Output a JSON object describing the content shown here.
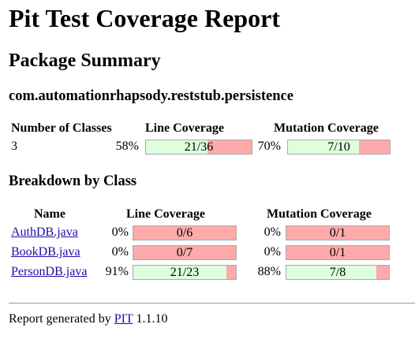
{
  "page": {
    "title": "Pit Test Coverage Report",
    "subtitle": "Package Summary",
    "package_name": "com.automationrhapsody.reststub.persistence"
  },
  "summary": {
    "headers": {
      "classes": "Number of Classes",
      "line": "Line Coverage",
      "mutation": "Mutation Coverage"
    },
    "num_classes": "3",
    "line_pct": "58%",
    "line_ratio": "21/36",
    "line_fraction": 0.58,
    "mutation_pct": "70%",
    "mutation_ratio": "7/10",
    "mutation_fraction": 0.7
  },
  "breakdown": {
    "title": "Breakdown by Class",
    "headers": {
      "name": "Name",
      "line": "Line Coverage",
      "mutation": "Mutation Coverage"
    },
    "rows": [
      {
        "name": "AuthDB.java",
        "line_pct": "0%",
        "line_ratio": "0/6",
        "line_fraction": 0,
        "mutation_pct": "0%",
        "mutation_ratio": "0/1",
        "mutation_fraction": 0
      },
      {
        "name": "BookDB.java",
        "line_pct": "0%",
        "line_ratio": "0/7",
        "line_fraction": 0,
        "mutation_pct": "0%",
        "mutation_ratio": "0/1",
        "mutation_fraction": 0
      },
      {
        "name": "PersonDB.java",
        "line_pct": "91%",
        "line_ratio": "21/23",
        "line_fraction": 0.91,
        "mutation_pct": "88%",
        "mutation_ratio": "7/8",
        "mutation_fraction": 0.88
      }
    ]
  },
  "footer": {
    "prefix": "Report generated by",
    "link": "PIT",
    "version": "1.1.10"
  },
  "colors": {
    "covered": "#ddffdd",
    "uncovered": "#ffaaaa",
    "link": "#1a0dab"
  }
}
